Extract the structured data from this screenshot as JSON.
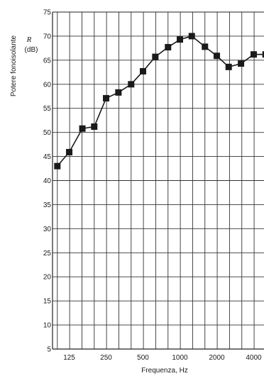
{
  "chart_data": {
    "type": "line",
    "title": "",
    "ylabel": "Potere fonoisolante",
    "ylabel_symbol": "R",
    "ylabel_unit": "(dB)",
    "xlabel": "Frequenza, Hz",
    "xscale": "log",
    "grid": true,
    "ylim": [
      5,
      75
    ],
    "yticks": [
      "5",
      "10",
      "15",
      "20",
      "25",
      "30",
      "35",
      "40",
      "45",
      "50",
      "55",
      "60",
      "65",
      "70",
      "75"
    ],
    "xticks": [
      "125",
      "250",
      "500",
      "1000",
      "2000",
      "4000"
    ],
    "series": [
      {
        "marker": "square",
        "color": "#1a1a1a",
        "x": [
          100,
          125,
          160,
          200,
          250,
          315,
          400,
          500,
          630,
          800,
          1000,
          1250,
          1600,
          2000,
          2500,
          3150,
          4000,
          5000
        ],
        "y": [
          43,
          45.9,
          50.8,
          51.2,
          57.1,
          58.3,
          60,
          62.7,
          65.7,
          67.7,
          69.3,
          70,
          67.8,
          65.9,
          63.6,
          64.3,
          66.2,
          66.2
        ]
      }
    ]
  }
}
